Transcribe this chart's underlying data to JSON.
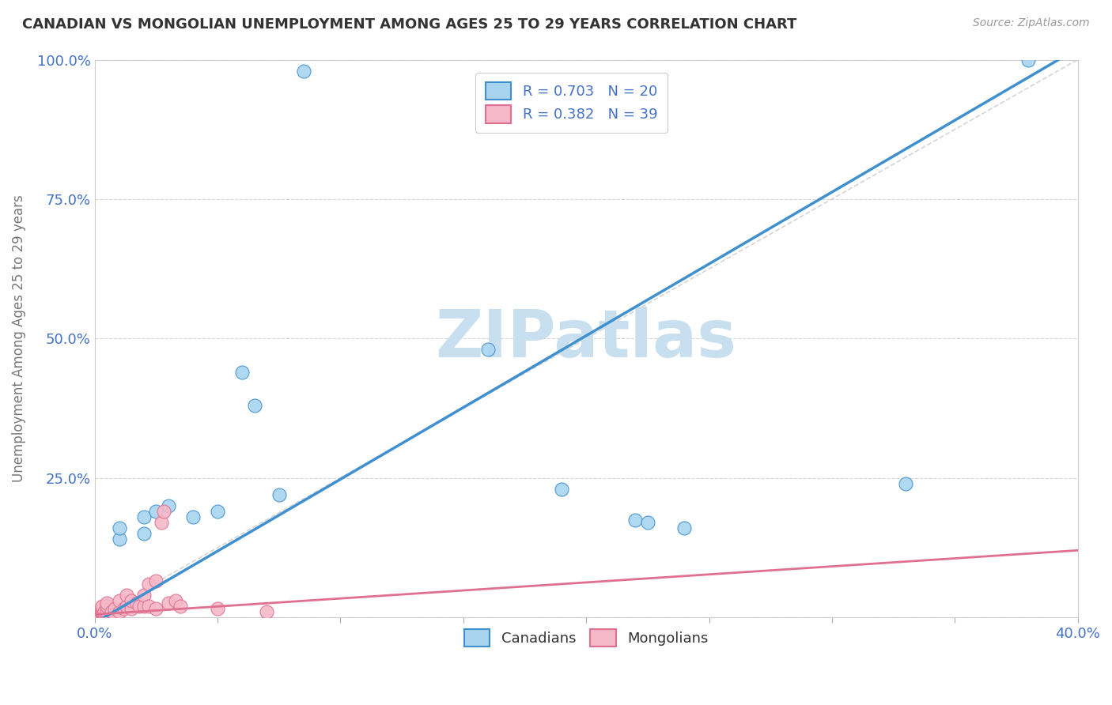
{
  "title": "CANADIAN VS MONGOLIAN UNEMPLOYMENT AMONG AGES 25 TO 29 YEARS CORRELATION CHART",
  "source": "Source: ZipAtlas.com",
  "ylabel": "Unemployment Among Ages 25 to 29 years",
  "xlim": [
    0.0,
    0.4
  ],
  "ylim": [
    0.0,
    1.0
  ],
  "xticks": [
    0.0,
    0.05,
    0.1,
    0.15,
    0.2,
    0.25,
    0.3,
    0.35,
    0.4
  ],
  "yticks": [
    0.0,
    0.25,
    0.5,
    0.75,
    1.0
  ],
  "canadians_x": [
    0.005,
    0.01,
    0.01,
    0.02,
    0.02,
    0.025,
    0.03,
    0.04,
    0.05,
    0.06,
    0.065,
    0.075,
    0.085,
    0.16,
    0.19,
    0.22,
    0.225,
    0.24,
    0.33,
    0.38
  ],
  "canadians_y": [
    0.02,
    0.14,
    0.16,
    0.15,
    0.18,
    0.19,
    0.2,
    0.18,
    0.19,
    0.44,
    0.38,
    0.22,
    0.98,
    0.48,
    0.23,
    0.175,
    0.17,
    0.16,
    0.24,
    1.0
  ],
  "mongolians_x": [
    0.003,
    0.003,
    0.003,
    0.003,
    0.003,
    0.003,
    0.003,
    0.003,
    0.004,
    0.004,
    0.005,
    0.005,
    0.005,
    0.005,
    0.007,
    0.008,
    0.008,
    0.01,
    0.01,
    0.012,
    0.013,
    0.013,
    0.015,
    0.015,
    0.017,
    0.018,
    0.02,
    0.02,
    0.022,
    0.022,
    0.025,
    0.025,
    0.027,
    0.028,
    0.03,
    0.033,
    0.035,
    0.05,
    0.07
  ],
  "mongolians_y": [
    0.005,
    0.005,
    0.008,
    0.01,
    0.012,
    0.015,
    0.018,
    0.02,
    0.005,
    0.01,
    0.005,
    0.01,
    0.02,
    0.025,
    0.01,
    0.005,
    0.015,
    0.01,
    0.03,
    0.015,
    0.02,
    0.04,
    0.015,
    0.03,
    0.025,
    0.02,
    0.02,
    0.04,
    0.02,
    0.06,
    0.015,
    0.065,
    0.17,
    0.19,
    0.025,
    0.03,
    0.02,
    0.015,
    0.01
  ],
  "canadian_color": "#A8D4F0",
  "mongolian_color": "#F5B8C8",
  "canadian_line_color": "#4090D0",
  "mongolian_line_color": "#E07090",
  "diagonal_color": "#D0D0D0",
  "r_canadian": 0.703,
  "n_canadian": 20,
  "r_mongolian": 0.382,
  "n_mongolian": 39,
  "watermark": "ZIPatlas",
  "watermark_color": "#C8DFF0",
  "background_color": "#FFFFFF",
  "ca_line_x0": 0.0,
  "ca_line_y0": -0.01,
  "ca_line_x1": 0.4,
  "ca_line_y1": 1.02,
  "mn_line_x0": 0.0,
  "mn_line_y0": 0.005,
  "mn_line_x1": 0.4,
  "mn_line_y1": 0.12
}
